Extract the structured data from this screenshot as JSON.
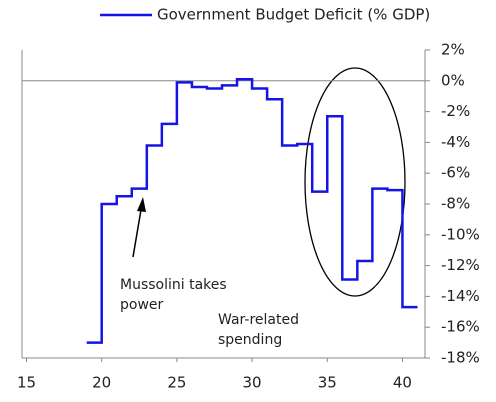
{
  "chart_data": {
    "type": "line",
    "step": "post",
    "legend": "top",
    "series": [
      {
        "name": "Government Budget Deficit (% GDP)",
        "color": "#1414e6",
        "x": [
          19,
          20,
          21,
          22,
          23,
          24,
          25,
          26,
          27,
          28,
          29,
          30,
          31,
          32,
          33,
          34,
          35,
          36,
          37,
          38,
          39,
          40
        ],
        "values": [
          -17,
          -8.0,
          -7.5,
          -7.0,
          -4.2,
          -2.8,
          -0.1,
          -0.4,
          -0.5,
          -0.3,
          0.1,
          -0.5,
          -1.2,
          -4.2,
          -4.1,
          -7.2,
          -2.3,
          -12.9,
          -11.7,
          -7.0,
          -7.1,
          -14.7
        ]
      }
    ],
    "xlim": [
      14.7,
      41.5
    ],
    "xticks": [
      15,
      20,
      25,
      30,
      35,
      40
    ],
    "ylim": [
      -18,
      2
    ],
    "yticks": [
      {
        "value": 2,
        "label": "2%"
      },
      {
        "value": 0,
        "label": "0%"
      },
      {
        "value": -2,
        "label": "-2%"
      },
      {
        "value": -4,
        "label": "-4%"
      },
      {
        "value": -6,
        "label": "-6%"
      },
      {
        "value": -8,
        "label": "-8%"
      },
      {
        "value": -10,
        "label": "-10%"
      },
      {
        "value": -12,
        "label": "-12%"
      },
      {
        "value": -14,
        "label": "-14%"
      },
      {
        "value": -16,
        "label": "-16%"
      },
      {
        "value": -18,
        "label": "-18%"
      }
    ],
    "y_axis_side": "right",
    "annotations": [
      {
        "lines": [
          "Mussolini takes",
          "power"
        ]
      },
      {
        "lines": [
          "War-related",
          "spending"
        ]
      }
    ]
  }
}
